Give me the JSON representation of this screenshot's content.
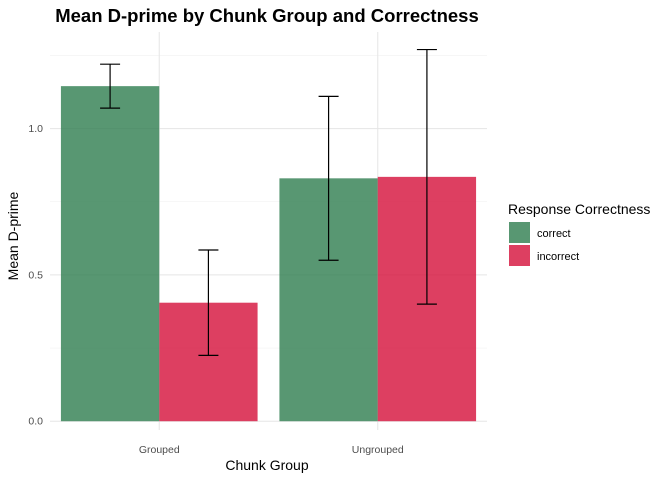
{
  "chart_data": {
    "type": "bar",
    "title": "Mean D-prime by Chunk Group and Correctness",
    "xlabel": "Chunk Group",
    "ylabel": "Mean D-prime",
    "categories": [
      "Grouped",
      "Ungrouped"
    ],
    "series": [
      {
        "name": "correct",
        "color": "#2e7d4f",
        "values": [
          1.145,
          0.83
        ],
        "error_low": [
          1.07,
          0.55
        ],
        "error_high": [
          1.22,
          1.11
        ]
      },
      {
        "name": "incorrect",
        "color": "#d50f3a",
        "values": [
          0.405,
          0.835
        ],
        "error_low": [
          0.225,
          0.4
        ],
        "error_high": [
          0.585,
          1.27
        ]
      }
    ],
    "ylim": [
      -0.03,
      1.33
    ],
    "yticks": [
      0.0,
      0.5,
      1.0
    ],
    "ytick_labels": [
      "0.0",
      "0.5",
      "1.0"
    ],
    "bar_opacity": 0.8,
    "grid": true,
    "legend": {
      "title": "Response Correctness",
      "placement": "right"
    }
  }
}
